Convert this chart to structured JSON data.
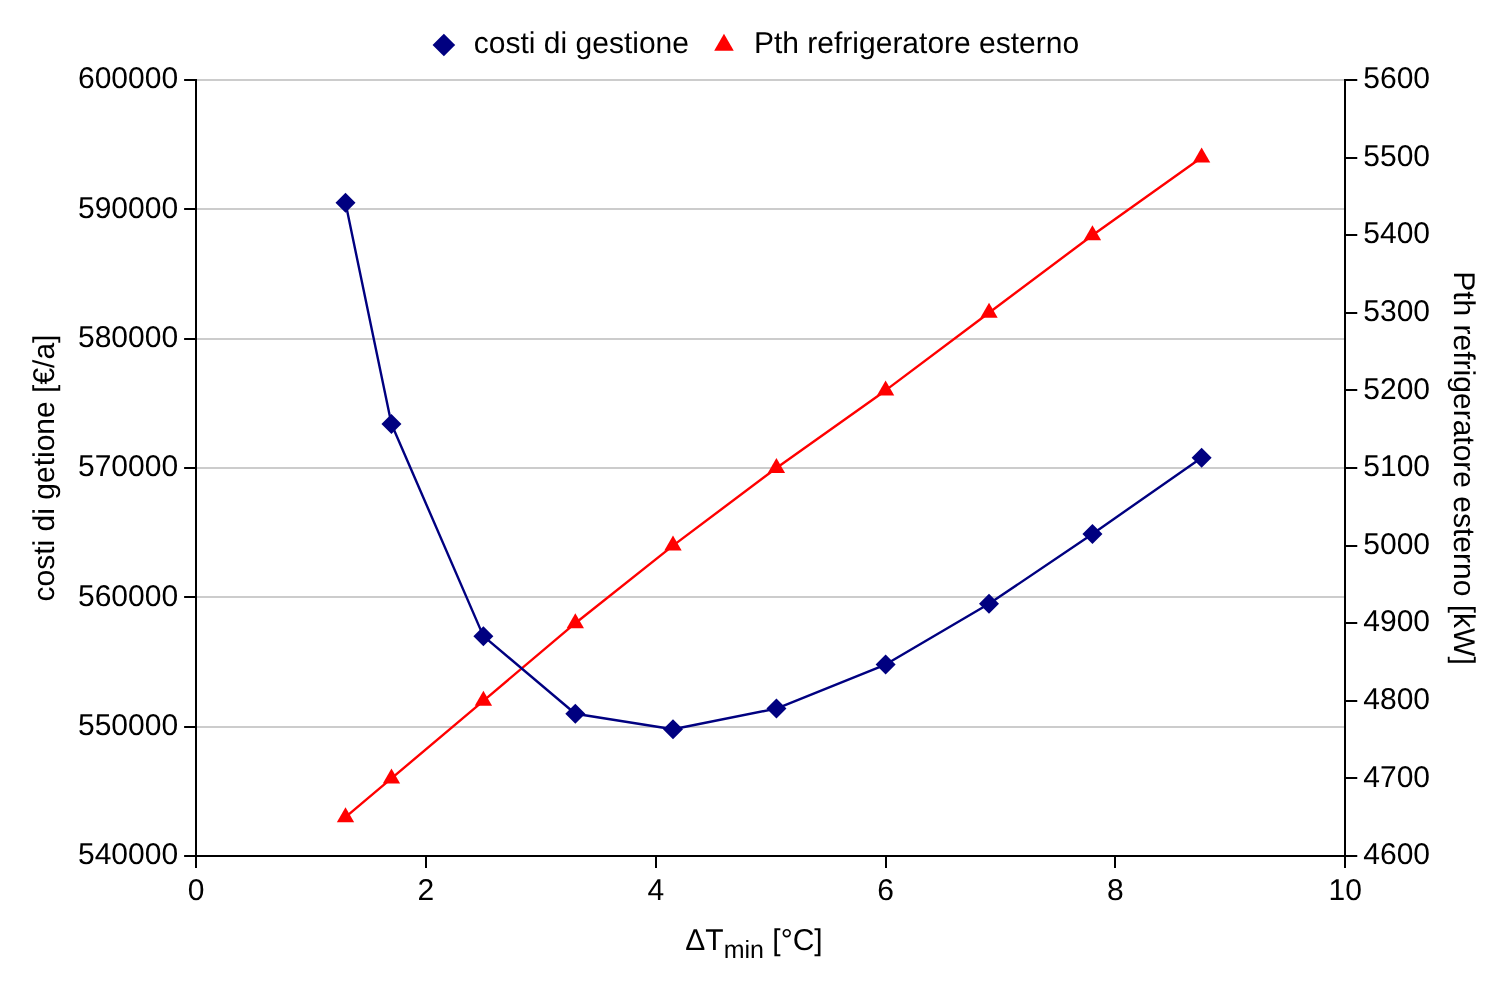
{
  "chart_data": {
    "type": "line",
    "xlabel": "ΔT$_{min}$ [°C]",
    "ylabel": "costi di getione [€/a]",
    "y2label": "Pth refrigeratore esterno [kW]",
    "x": [
      1.3,
      1.7,
      2.5,
      3.3,
      4.15,
      5.05,
      6,
      6.9,
      7.8,
      8.75
    ],
    "series": [
      {
        "name": "costi di gestione",
        "color": "#000080",
        "marker": "diamond",
        "values": [
          590500,
          573400,
          557000,
          551000,
          549800,
          551400,
          554800,
          559500,
          564900,
          570800
        ]
      },
      {
        "name": "Pth refrigeratore esterno",
        "color": "#ff0000",
        "marker": "triangle",
        "axis": "y2",
        "values": [
          4650,
          4700,
          4800,
          4900,
          5000,
          5100,
          5200,
          5300,
          5400,
          5500
        ]
      }
    ],
    "xlim": [
      0,
      10
    ],
    "xticks": [
      0,
      2,
      4,
      6,
      8,
      10
    ],
    "ylim": [
      540000,
      600000
    ],
    "yticks": [
      540000,
      550000,
      560000,
      570000,
      580000,
      590000,
      600000
    ],
    "y2lim": [
      4600,
      5600
    ],
    "y2ticks": [
      4600,
      4700,
      4800,
      4900,
      5000,
      5100,
      5200,
      5300,
      5400,
      5500,
      5600
    ],
    "grid": "y",
    "legend": "top",
    "line_style": "solid"
  }
}
